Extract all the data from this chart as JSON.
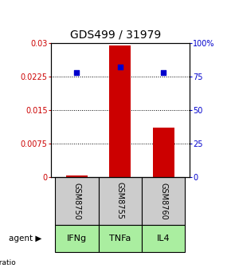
{
  "title": "GDS499 / 31979",
  "samples": [
    "GSM8750",
    "GSM8755",
    "GSM8760"
  ],
  "agents": [
    "IFNg",
    "TNFa",
    "IL4"
  ],
  "log_ratios": [
    0.0003,
    0.0295,
    0.011
  ],
  "percentile_ranks": [
    78,
    82,
    78
  ],
  "bar_color": "#cc0000",
  "dot_color": "#0000cc",
  "left_ylim": [
    0,
    0.03
  ],
  "right_ylim": [
    0,
    100
  ],
  "left_yticks": [
    0,
    0.0075,
    0.015,
    0.0225,
    0.03
  ],
  "left_yticklabels": [
    "0",
    "0.0075",
    "0.015",
    "0.0225",
    "0.03"
  ],
  "right_yticks": [
    0,
    25,
    50,
    75,
    100
  ],
  "right_yticklabels": [
    "0",
    "25",
    "50",
    "75",
    "100%"
  ],
  "grid_values": [
    0.0075,
    0.015,
    0.0225
  ],
  "sample_box_color": "#cccccc",
  "agent_box_color": "#aaeea0",
  "agent_box_color2": "#66cc66",
  "box_border_color": "#000000",
  "background_color": "#ffffff",
  "title_fontsize": 10,
  "tick_fontsize": 7,
  "legend_fontsize": 6.5,
  "agent_label_fontsize": 8,
  "sample_label_fontsize": 7
}
